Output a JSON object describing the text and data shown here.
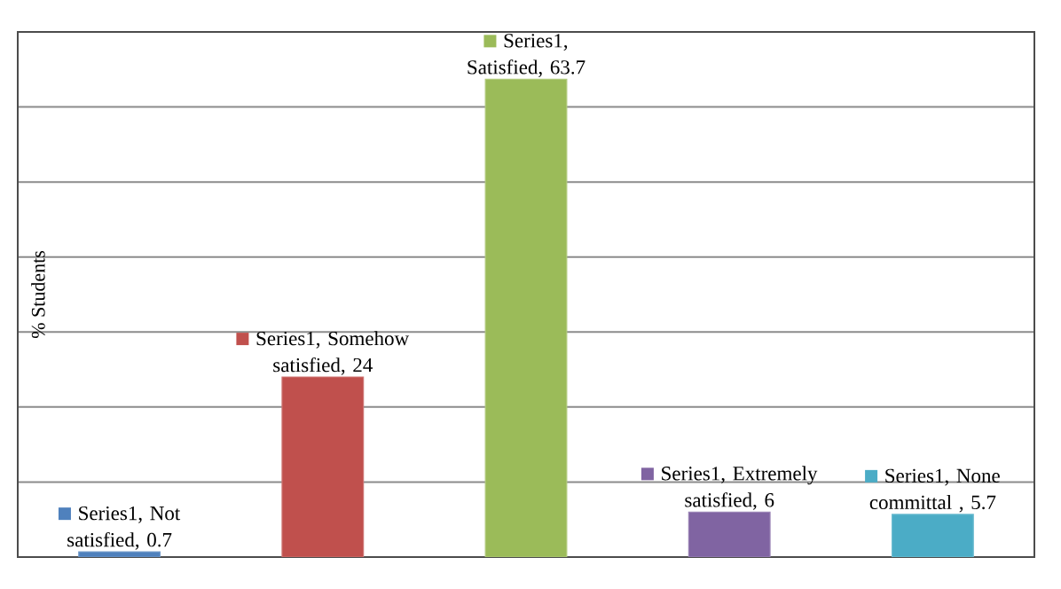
{
  "chart_data": {
    "type": "bar",
    "ylabel": "% Students",
    "categories": [
      null,
      null,
      null,
      null,
      null
    ],
    "values": [
      0.7,
      24,
      63.7,
      6,
      5.7
    ],
    "colors": [
      "#4f81bd",
      "#c0504d",
      "#9bbb59",
      "#8064a2",
      "#4bacc6"
    ],
    "value_labels": [
      "Series1, Not satisfied, 0.7",
      "Series1, Somehow satisfied, 24",
      "Series1, Satisfied, 63.7",
      "Series1, Extremely satisfied, 6",
      "Series1, None committal , 5.7"
    ],
    "ylim": [
      0,
      70
    ],
    "yticks": [
      {
        "value": 0,
        "label": null
      },
      {
        "value": 10,
        "label": null
      },
      {
        "value": 20,
        "label": null
      },
      {
        "value": 30,
        "label": null
      },
      {
        "value": 40,
        "label": null
      },
      {
        "value": 50,
        "label": null
      },
      {
        "value": 60,
        "label": null
      },
      {
        "value": 70,
        "label": null
      }
    ],
    "grid": "y"
  }
}
